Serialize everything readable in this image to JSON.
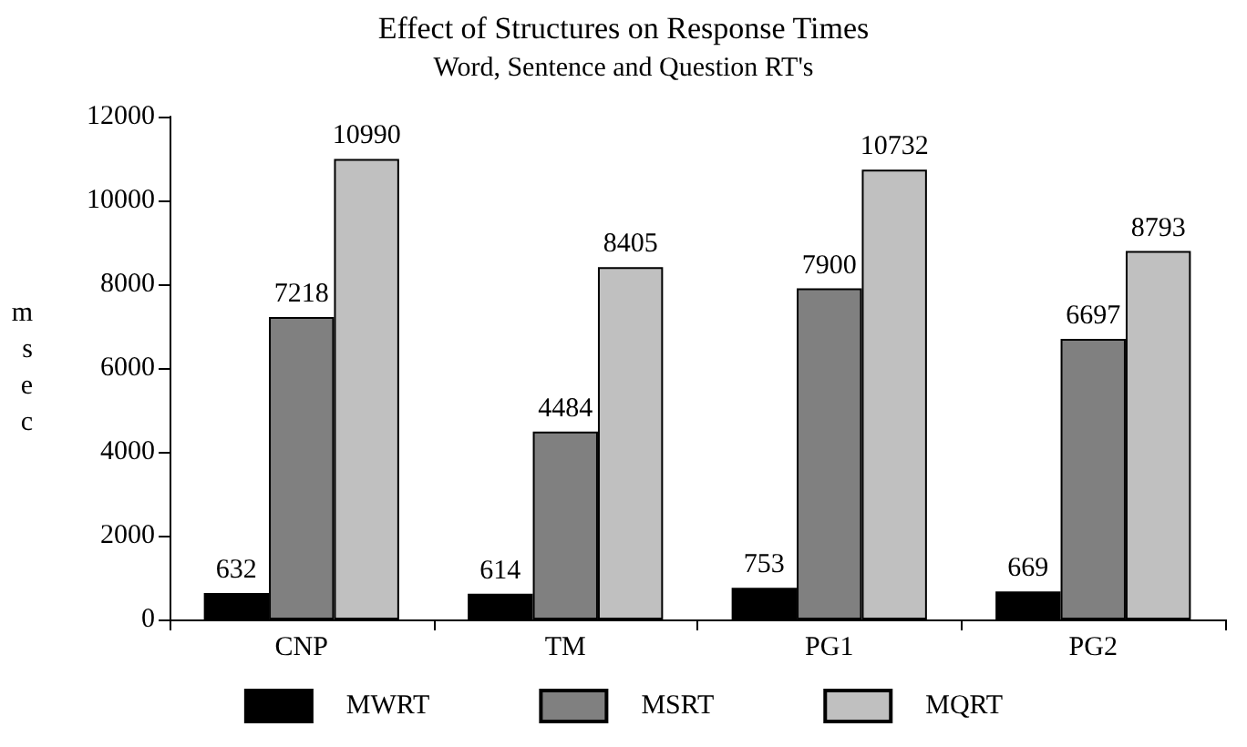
{
  "chart_data": {
    "type": "bar",
    "title": "Effect of Structures on Response Times",
    "subtitle": "Word, Sentence and Question RT's",
    "ylabel": "msec",
    "categories": [
      "CNP",
      "TM",
      "PG1",
      "PG2"
    ],
    "series": [
      {
        "name": "MWRT",
        "color": "#000000",
        "values": [
          632,
          614,
          753,
          669
        ]
      },
      {
        "name": "MSRT",
        "color": "#808080",
        "values": [
          7218,
          4484,
          7900,
          6697
        ]
      },
      {
        "name": "MQRT",
        "color": "#c0c0c0",
        "values": [
          10990,
          8405,
          10732,
          8793
        ]
      }
    ],
    "ylim": [
      0,
      12000
    ],
    "yticks": [
      0,
      2000,
      4000,
      6000,
      8000,
      10000,
      12000
    ],
    "data_labels": true,
    "grid": false,
    "legend": "bottom"
  }
}
